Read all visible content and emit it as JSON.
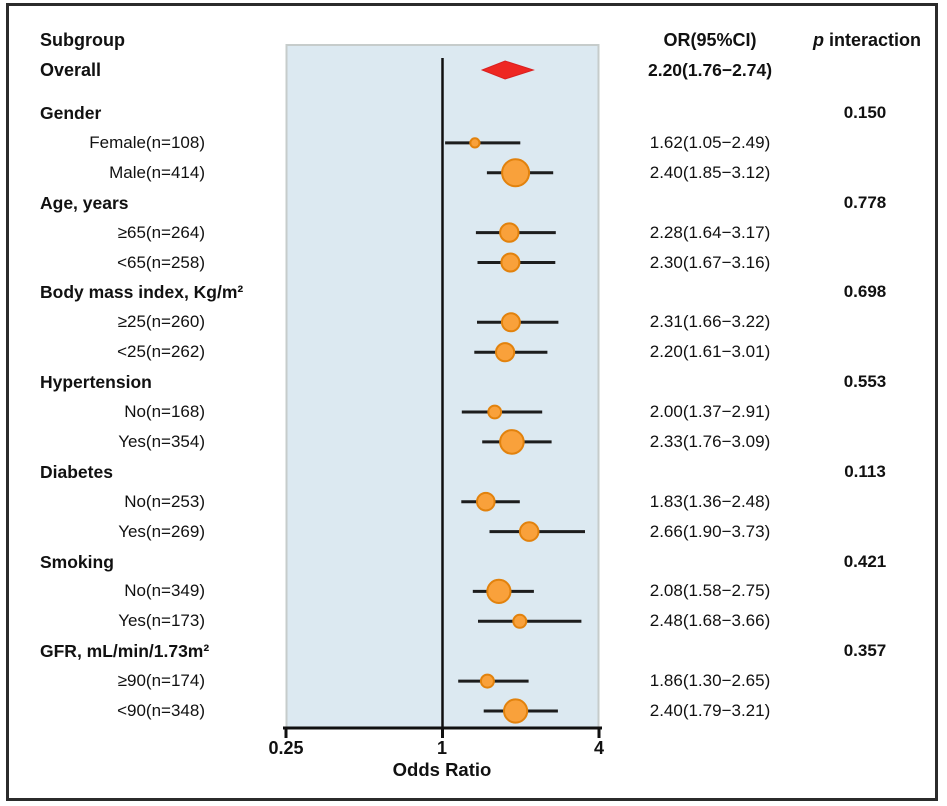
{
  "header": {
    "subgroup": "Subgroup",
    "or_ci": "OR(95%CI)",
    "p_italic": "p",
    "p_rest": " interaction"
  },
  "chart_data": {
    "type": "scatter",
    "subtype": "forest-plot",
    "title": "",
    "xlabel": "Odds Ratio",
    "x_tick_labels": [
      "0.25",
      "1",
      "4"
    ],
    "x_tick_values": [
      0.25,
      1,
      4
    ],
    "reference_line": 1,
    "columns": {
      "subgroup": "Subgroup",
      "or": "OR(95%CI)",
      "p": "p interaction"
    },
    "overall": {
      "label": "Overall",
      "or": 2.2,
      "lo": 1.76,
      "hi": 2.74,
      "or_text": "2.20(1.76−2.74)"
    },
    "groups": [
      {
        "label": "Gender",
        "p": "0.150",
        "items": [
          {
            "label": "Female(n=108)",
            "n": 108,
            "or": 1.62,
            "lo": 1.05,
            "hi": 2.49,
            "or_text": "1.62(1.05−2.49)"
          },
          {
            "label": "Male(n=414)",
            "n": 414,
            "or": 2.4,
            "lo": 1.85,
            "hi": 3.12,
            "or_text": "2.40(1.85−3.12)"
          }
        ]
      },
      {
        "label": "Age, years",
        "p": "0.778",
        "items": [
          {
            "label": "≥65(n=264)",
            "n": 264,
            "or": 2.28,
            "lo": 1.64,
            "hi": 3.17,
            "or_text": "2.28(1.64−3.17)"
          },
          {
            "label": "<65(n=258)",
            "n": 258,
            "or": 2.3,
            "lo": 1.67,
            "hi": 3.16,
            "or_text": "2.30(1.67−3.16)"
          }
        ]
      },
      {
        "label": "Body mass index, Kg/m²",
        "p": "0.698",
        "items": [
          {
            "label": "≥25(n=260)",
            "n": 260,
            "or": 2.31,
            "lo": 1.66,
            "hi": 3.22,
            "or_text": "2.31(1.66−3.22)"
          },
          {
            "label": "<25(n=262)",
            "n": 262,
            "or": 2.2,
            "lo": 1.61,
            "hi": 3.01,
            "or_text": "2.20(1.61−3.01)"
          }
        ]
      },
      {
        "label": "Hypertension",
        "p": "0.553",
        "items": [
          {
            "label": "No(n=168)",
            "n": 168,
            "or": 2.0,
            "lo": 1.37,
            "hi": 2.91,
            "or_text": "2.00(1.37−2.91)"
          },
          {
            "label": "Yes(n=354)",
            "n": 354,
            "or": 2.33,
            "lo": 1.76,
            "hi": 3.09,
            "or_text": "2.33(1.76−3.09)"
          }
        ]
      },
      {
        "label": "Diabetes",
        "p": "0.113",
        "items": [
          {
            "label": "No(n=253)",
            "n": 253,
            "or": 1.83,
            "lo": 1.36,
            "hi": 2.48,
            "or_text": "1.83(1.36−2.48)"
          },
          {
            "label": "Yes(n=269)",
            "n": 269,
            "or": 2.66,
            "lo": 1.9,
            "hi": 3.73,
            "or_text": "2.66(1.90−3.73)"
          }
        ]
      },
      {
        "label": "Smoking",
        "p": "0.421",
        "items": [
          {
            "label": "No(n=349)",
            "n": 349,
            "or": 2.08,
            "lo": 1.58,
            "hi": 2.75,
            "or_text": "2.08(1.58−2.75)"
          },
          {
            "label": "Yes(n=173)",
            "n": 173,
            "or": 2.48,
            "lo": 1.68,
            "hi": 3.66,
            "or_text": "2.48(1.68−3.66)"
          }
        ]
      },
      {
        "label": "GFR, mL/min/1.73m²",
        "p": "0.357",
        "items": [
          {
            "label": "≥90(n=174)",
            "n": 174,
            "or": 1.86,
            "lo": 1.3,
            "hi": 2.65,
            "or_text": "1.86(1.30−2.65)"
          },
          {
            "label": "<90(n=348)",
            "n": 348,
            "or": 2.4,
            "lo": 1.79,
            "hi": 3.21,
            "or_text": "2.40(1.79−3.21)"
          }
        ]
      }
    ],
    "colors": {
      "marker_fill": "#F9A13B",
      "marker_stroke": "#E2820D",
      "diamond_fill": "#EE2722",
      "diamond_stroke": "#D92020",
      "ci_line": "#1D1D1D",
      "plot_bg": "#DCE9F1",
      "plot_border": "#C6CCCB",
      "frame_border": "#2B2B2B",
      "text": "#111111"
    }
  }
}
